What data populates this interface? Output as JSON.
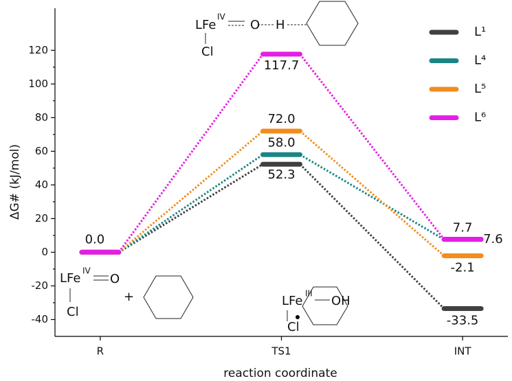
{
  "chart_data": {
    "type": "line",
    "xlabel": "reaction coordinate",
    "ylabel": "ΔG# (kJ/mol)",
    "categories": [
      "R",
      "TS1",
      "INT"
    ],
    "ylim": [
      -50,
      145
    ],
    "yticks": [
      -40,
      -20,
      0,
      20,
      40,
      60,
      80,
      100,
      120
    ],
    "legend": "upper right",
    "series": [
      {
        "name": "L¹",
        "color": "#404040",
        "values": [
          0,
          52.3,
          -33.5
        ],
        "value_labels": [
          null,
          "52.3",
          "-33.5"
        ]
      },
      {
        "name": "L⁴",
        "color": "#1b8585",
        "values": [
          0,
          58.0,
          7.6
        ],
        "value_labels": [
          "0.0",
          "58.0",
          "7.6"
        ]
      },
      {
        "name": "L⁵",
        "color": "#f28c1c",
        "values": [
          0,
          72.0,
          -2.1
        ],
        "value_labels": [
          null,
          "72.0",
          "-2.1"
        ]
      },
      {
        "name": "L⁶",
        "color": "#e41fe4",
        "values": [
          0,
          117.7,
          7.7
        ],
        "value_labels": [
          null,
          "117.7",
          "7.7"
        ]
      }
    ],
    "annotations": [
      "LFe",
      "IV",
      "O",
      "H",
      "Cl",
      "LFe",
      "IV",
      "O",
      "Cl",
      "+",
      "LFe",
      "III",
      "OH",
      "Cl"
    ]
  }
}
